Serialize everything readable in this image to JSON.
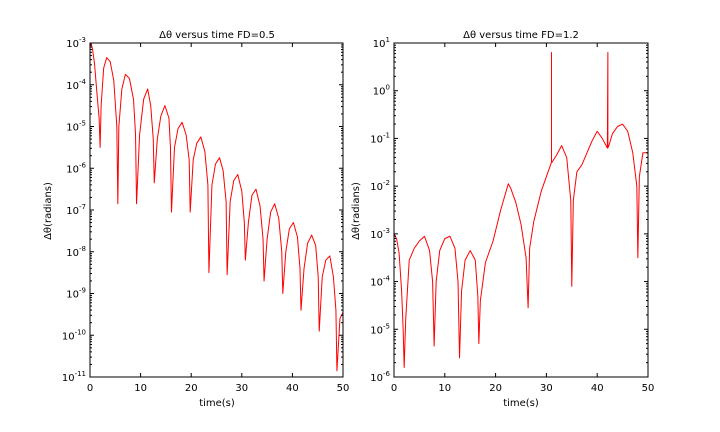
{
  "chart_data": [
    {
      "type": "line",
      "yscale": "log",
      "title": "Δθ  versus  time   FD=0.5",
      "xlabel": "time(s)",
      "ylabel": "Δθ(radians)",
      "xlim": [
        0,
        50
      ],
      "ylim_exp": [
        -11,
        -3
      ],
      "xticks": [
        "0",
        "10",
        "20",
        "30",
        "40",
        "50"
      ],
      "yticks": [
        "10",
        "10",
        "10",
        "10",
        "10",
        "10",
        "10",
        "10",
        "10"
      ],
      "ytick_exps": [
        "-11",
        "-10",
        "-9",
        "-8",
        "-7",
        "-6",
        "-5",
        "-4",
        "-3"
      ],
      "color": "#ff0000",
      "series": [
        {
          "name": "FD=0.5",
          "x": [
            0,
            0.2,
            0.5,
            0.9,
            1.3,
            1.8,
            2.0,
            2.2,
            2.7,
            3.3,
            4.0,
            4.7,
            5.3,
            5.5,
            5.7,
            6.3,
            7.0,
            7.8,
            8.6,
            9.0,
            9.2,
            9.8,
            10.6,
            11.4,
            12.0,
            12.5,
            12.7,
            13.3,
            14.0,
            14.8,
            15.6,
            15.9,
            16.1,
            16.7,
            17.4,
            18.2,
            19.0,
            19.6,
            19.8,
            20.4,
            21.1,
            21.9,
            22.7,
            23.3,
            23.5,
            24.1,
            24.8,
            25.6,
            26.3,
            26.9,
            27.1,
            27.7,
            28.4,
            29.2,
            30.0,
            30.5,
            30.7,
            31.3,
            32.0,
            32.8,
            33.6,
            34.2,
            34.4,
            35.0,
            35.7,
            36.5,
            37.3,
            37.9,
            38.1,
            38.7,
            39.4,
            40.2,
            41.0,
            41.5,
            41.7,
            42.3,
            43.0,
            43.8,
            44.6,
            45.1,
            45.3,
            45.9,
            46.6,
            47.4,
            48.1,
            48.6,
            48.8,
            49.4,
            50.0
          ],
          "log10_y": [
            -3.1,
            -3.0,
            -3.15,
            -3.5,
            -4.1,
            -4.8,
            -5.5,
            -4.5,
            -3.6,
            -3.35,
            -3.45,
            -3.9,
            -5.0,
            -6.85,
            -5.0,
            -4.1,
            -3.75,
            -3.85,
            -4.35,
            -5.2,
            -6.85,
            -5.2,
            -4.35,
            -4.1,
            -4.5,
            -5.3,
            -6.35,
            -5.3,
            -4.75,
            -4.5,
            -4.8,
            -5.5,
            -7.05,
            -5.5,
            -5.05,
            -4.9,
            -5.2,
            -5.8,
            -7.05,
            -5.8,
            -5.4,
            -5.25,
            -5.6,
            -6.4,
            -8.5,
            -6.4,
            -5.9,
            -5.75,
            -6.05,
            -6.8,
            -8.55,
            -6.8,
            -6.3,
            -6.15,
            -6.55,
            -7.3,
            -8.2,
            -7.3,
            -6.65,
            -6.5,
            -6.9,
            -7.7,
            -8.7,
            -7.7,
            -7.05,
            -6.85,
            -7.2,
            -8.0,
            -9.0,
            -8.0,
            -7.45,
            -7.3,
            -7.65,
            -8.4,
            -9.4,
            -8.4,
            -7.8,
            -7.6,
            -7.85,
            -8.6,
            -9.9,
            -8.6,
            -8.2,
            -8.1,
            -8.6,
            -9.4,
            -10.85,
            -9.6,
            -9.45
          ]
        }
      ]
    },
    {
      "type": "line",
      "yscale": "log",
      "title": "Δθ  versus  time   FD=1.2",
      "xlabel": "time(s)",
      "ylabel": "Δθ(radians)",
      "xlim": [
        0,
        50
      ],
      "ylim_exp": [
        -6,
        1
      ],
      "xticks": [
        "0",
        "10",
        "20",
        "30",
        "40",
        "50"
      ],
      "yticks": [
        "10",
        "10",
        "10",
        "10",
        "10",
        "10",
        "10",
        "10"
      ],
      "ytick_exps": [
        "-6",
        "-5",
        "-4",
        "-3",
        "-2",
        "-1",
        "0",
        "1"
      ],
      "color": "#ff0000",
      "series": [
        {
          "name": "FD=1.2",
          "x": [
            0,
            0.5,
            1.0,
            1.5,
            1.8,
            2.0,
            2.3,
            3.0,
            4.0,
            5.0,
            6.0,
            7.0,
            7.6,
            7.9,
            8.3,
            9.0,
            10.0,
            11.0,
            12.0,
            12.6,
            12.9,
            13.3,
            14.0,
            15.0,
            16.0,
            16.5,
            16.7,
            17.0,
            18.0,
            19.5,
            21.0,
            22.5,
            23.0,
            24.0,
            25.0,
            26.0,
            26.4,
            26.7,
            27.5,
            29.0,
            30.5,
            31.0,
            31.0,
            31.0,
            31.1,
            32.0,
            33.0,
            34.0,
            34.8,
            35.0,
            35.3,
            36.0,
            37.0,
            38.0,
            39.0,
            40.0,
            41.0,
            42.0,
            42.1,
            42.1,
            42.1,
            42.3,
            43.0,
            44.0,
            45.0,
            46.0,
            47.0,
            47.8,
            48.0,
            48.3,
            49.0,
            50.0
          ],
          "log10_y": [
            -3.0,
            -3.1,
            -3.4,
            -4.2,
            -5.0,
            -5.8,
            -4.8,
            -3.55,
            -3.3,
            -3.15,
            -3.05,
            -3.35,
            -4.0,
            -5.35,
            -4.0,
            -3.35,
            -3.1,
            -3.05,
            -3.3,
            -4.0,
            -5.6,
            -4.2,
            -3.55,
            -3.35,
            -3.55,
            -4.3,
            -5.3,
            -4.4,
            -3.6,
            -3.15,
            -2.5,
            -1.95,
            -2.05,
            -2.35,
            -2.8,
            -3.5,
            -4.55,
            -3.3,
            -2.75,
            -2.1,
            -1.65,
            -1.5,
            0.8,
            -1.5,
            -1.5,
            -1.35,
            -1.15,
            -1.4,
            -2.3,
            -4.1,
            -2.3,
            -1.7,
            -1.55,
            -1.3,
            -1.05,
            -0.85,
            -1.0,
            -1.2,
            0.8,
            -1.2,
            -1.2,
            -1.15,
            -0.9,
            -0.75,
            -0.7,
            -0.85,
            -1.3,
            -2.0,
            -3.5,
            -1.8,
            -1.3,
            -1.3
          ]
        }
      ]
    }
  ]
}
